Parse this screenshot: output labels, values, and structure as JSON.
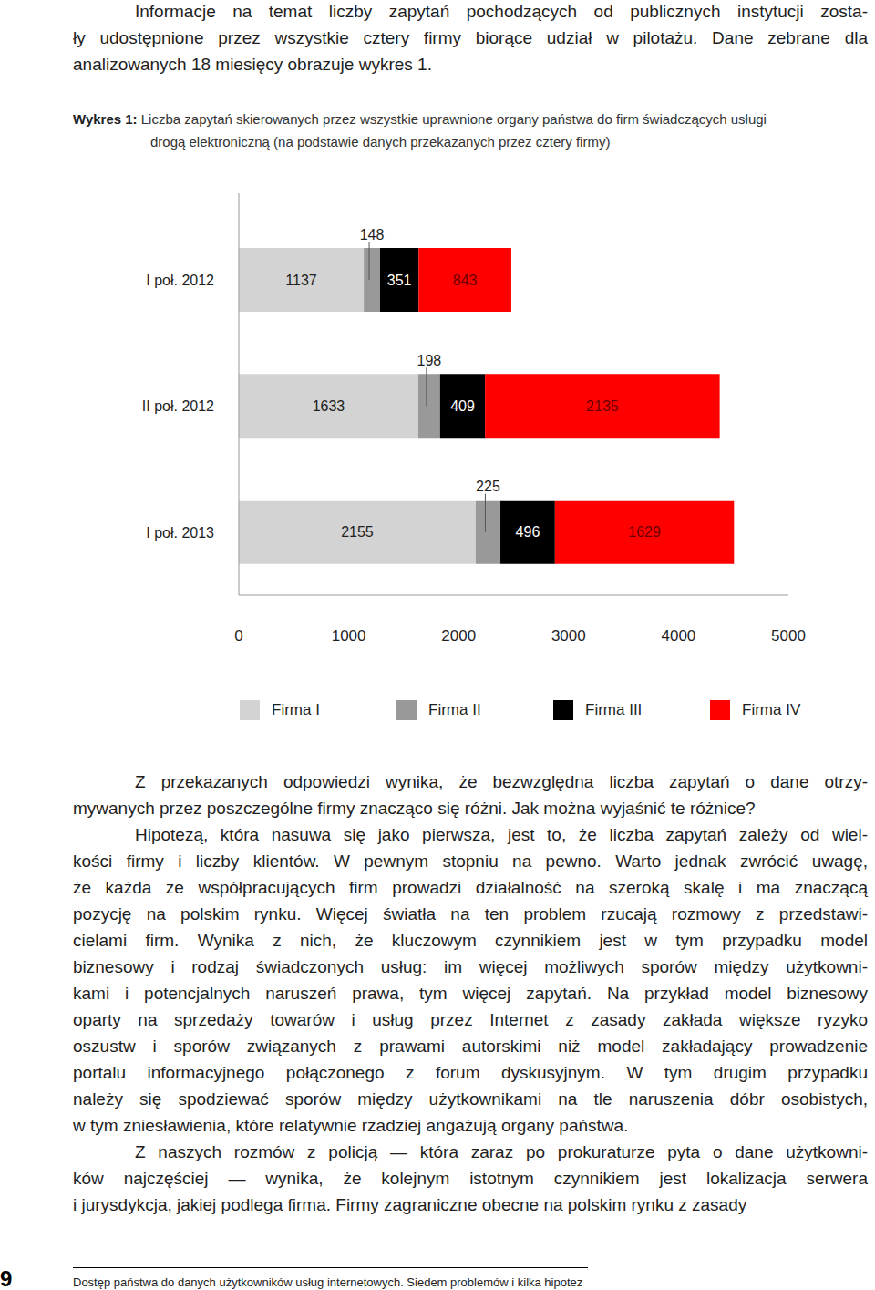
{
  "intro": {
    "lines": [
      "Informacje na temat liczby zapytań pochodzących od publicznych instytucji zosta-",
      "ły udostępnione przez wszystkie cztery firmy biorące udział w pilotażu. Dane zebrane dla",
      "analizowanych 18 miesięcy obrazuje wykres 1."
    ]
  },
  "figure": {
    "label": "Wykres 1:",
    "caption_lines": [
      "Liczba zapytań skierowanych przez wszystkie uprawnione organy państwa do firm świadczących usługi",
      "drogą elektroniczną (na podstawie danych przekazanych przez cztery firmy)"
    ]
  },
  "chart_data": {
    "type": "bar",
    "orientation": "horizontal",
    "stacked": true,
    "data_labels": true,
    "grid": false,
    "legend": "bottom",
    "categories": [
      "I poł. 2012",
      "II poł. 2012",
      "I poł. 2013"
    ],
    "series": [
      {
        "name": "Firma I",
        "color": "#d3d3d3",
        "values": [
          1137,
          1633,
          2155
        ]
      },
      {
        "name": "Firma II",
        "color": "#999999",
        "values": [
          148,
          198,
          225
        ]
      },
      {
        "name": "Firma III",
        "color": "#000000",
        "values": [
          351,
          409,
          496
        ]
      },
      {
        "name": "Firma IV",
        "color": "#ff0000",
        "values": [
          843,
          2135,
          1629
        ]
      }
    ],
    "xlim": [
      0,
      5000
    ],
    "xticks": [
      0,
      1000,
      2000,
      3000,
      4000,
      5000
    ]
  },
  "body": {
    "paragraphs": [
      [
        "Z przekazanych odpowiedzi wynika, że bezwzględna liczba zapytań o dane otrzy-",
        "mywanych przez poszczególne firmy znacząco się różni. Jak można wyjaśnić te różnice?"
      ],
      [
        "Hipotezą, która nasuwa się jako pierwsza, jest to, że liczba zapytań zależy od wiel-",
        "kości firmy i liczby klientów. W pewnym stopniu na pewno. Warto jednak zwrócić uwagę,",
        "że każda ze współpracujących firm prowadzi działalność na szeroką skalę i ma znaczącą",
        "pozycję na polskim rynku. Więcej światła na ten problem rzucają rozmowy z przedstawi-",
        "cielami firm. Wynika z nich, że kluczowym czynnikiem jest w tym przypadku model",
        "biznesowy i rodzaj świadczonych usług: im więcej możliwych sporów między użytkowni-",
        "kami i potencjalnych naruszeń prawa, tym więcej zapytań. Na przykład model biznesowy",
        "oparty na sprzedaży towarów i usług przez Internet z zasady zakłada większe ryzyko",
        "oszustw i sporów związanych z prawami autorskimi niż model zakładający prowadzenie",
        "portalu informacyjnego połączonego z forum dyskusyjnym. W tym drugim przypadku",
        "należy się spodziewać sporów między użytkownikami na tle naruszenia dóbr osobistych,",
        "w tym zniesławienia, które relatywnie rzadziej angażują organy państwa."
      ],
      [
        "Z naszych rozmów z policją — która zaraz po prokuraturze pyta o dane użytkowni-",
        "ków najczęściej — wynika, że kolejnym istotnym czynnikiem jest lokalizacja serwera",
        "i jurysdykcja, jakiej podlega firma. Firmy zagraniczne obecne na polskim rynku z zasady"
      ]
    ]
  },
  "footer": {
    "page": 9,
    "text": "Dostęp państwa do danych użytkowników usług internetowych. Siedem problemów i kilka hipotez"
  }
}
